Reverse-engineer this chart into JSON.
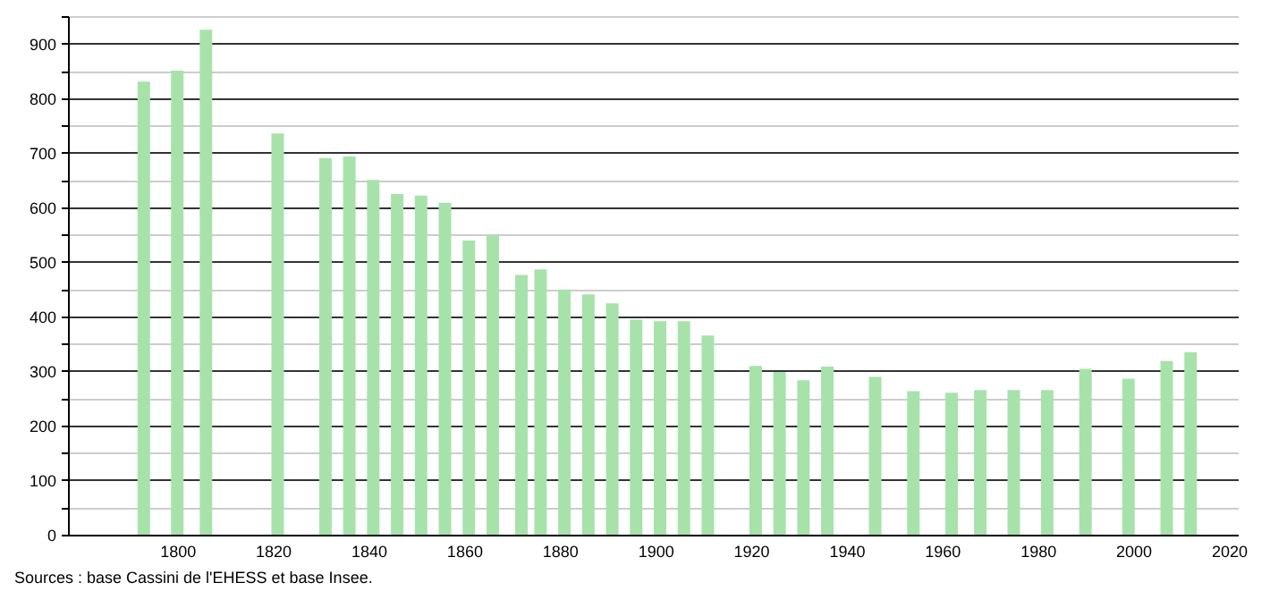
{
  "chart_data": {
    "type": "bar",
    "x": [
      1793,
      1800,
      1806,
      1821,
      1831,
      1836,
      1841,
      1846,
      1851,
      1856,
      1861,
      1866,
      1872,
      1876,
      1881,
      1886,
      1891,
      1896,
      1901,
      1906,
      1911,
      1921,
      1926,
      1931,
      1936,
      1946,
      1954,
      1962,
      1968,
      1975,
      1982,
      1990,
      1999,
      2007,
      2012
    ],
    "values": [
      830,
      850,
      925,
      735,
      690,
      693,
      650,
      624,
      621,
      608,
      539,
      548,
      476,
      486,
      449,
      440,
      424,
      394,
      391,
      391,
      365,
      309,
      298,
      283,
      308,
      289,
      263,
      260,
      265,
      265,
      265,
      304,
      286,
      318,
      334
    ],
    "color": "#a8e2ab",
    "xlim": [
      1779,
      2020
    ],
    "xticks": [
      1800,
      1820,
      1840,
      1860,
      1880,
      1900,
      1920,
      1940,
      1960,
      1980,
      2000,
      2020
    ],
    "ylim": [
      0,
      950
    ],
    "yticks": [
      0,
      {
        "value": 50,
        "label": null
      },
      100,
      {
        "value": 150,
        "label": null
      },
      200,
      {
        "value": 250,
        "label": null
      },
      300,
      {
        "value": 350,
        "label": null
      },
      400,
      {
        "value": 450,
        "label": null
      },
      500,
      {
        "value": 550,
        "label": null
      },
      600,
      {
        "value": 650,
        "label": null
      },
      700,
      {
        "value": 750,
        "label": null
      },
      800,
      {
        "value": 850,
        "label": null
      },
      900,
      {
        "value": 950,
        "label": null
      }
    ],
    "grid": "y",
    "annotations": [
      "Sources : base Cassini de l'EHESS et base Insee."
    ]
  }
}
